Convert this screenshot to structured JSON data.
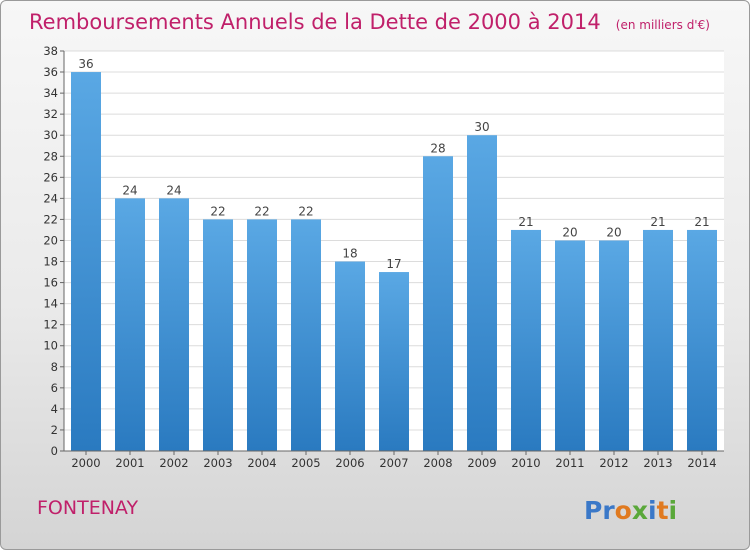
{
  "chart_data": {
    "type": "bar",
    "title": "Remboursements Annuels de la Dette de 2000 à 2014",
    "subtitle": "(en milliers d'€)",
    "categories": [
      "2000",
      "2001",
      "2002",
      "2003",
      "2004",
      "2005",
      "2006",
      "2007",
      "2008",
      "2009",
      "2010",
      "2011",
      "2012",
      "2013",
      "2014"
    ],
    "values": [
      36,
      24,
      24,
      22,
      22,
      22,
      18,
      17,
      28,
      30,
      21,
      20,
      20,
      21,
      21
    ],
    "ylim": [
      0,
      38
    ],
    "yticks": [
      0,
      2,
      4,
      6,
      8,
      10,
      12,
      14,
      16,
      18,
      20,
      22,
      24,
      26,
      28,
      30,
      32,
      34,
      36,
      38
    ],
    "grid": true,
    "colors": {
      "bar_top": "#5aa8e4",
      "bar_bottom": "#2a7ac0"
    }
  },
  "commune": "FONTENAY",
  "logo": {
    "letters": [
      "P",
      "r",
      "o",
      "x",
      "i",
      "t",
      "i"
    ],
    "colors": [
      "#3a78c8",
      "#3a78c8",
      "#e07a20",
      "#5aa83a",
      "#3a78c8",
      "#e07a20",
      "#5aa83a"
    ]
  }
}
